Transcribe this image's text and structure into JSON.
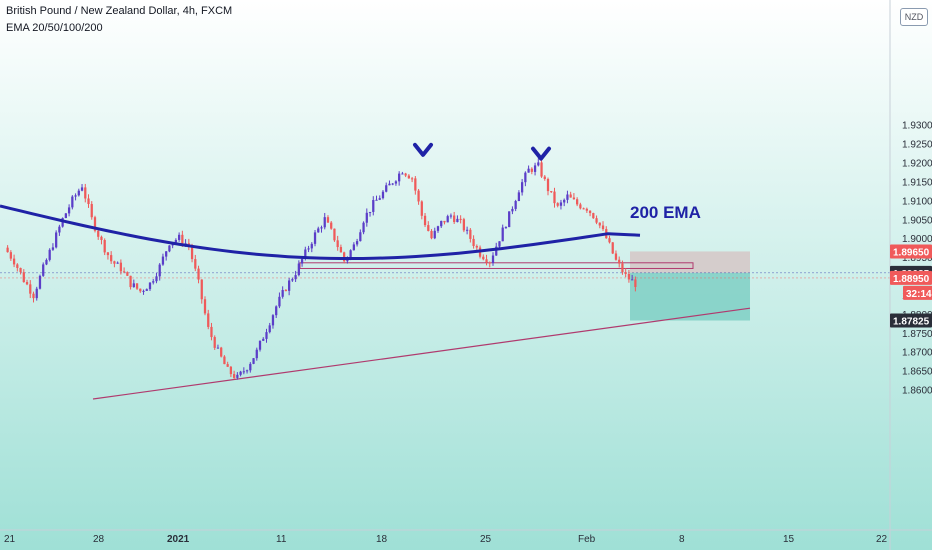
{
  "chart_title": "British Pound / New Zealand Dollar, 4h, FXCM",
  "indicator_label": "EMA 20/50/100/200",
  "currency_button": "NZD",
  "annotation_text": "200 EMA",
  "colors": {
    "bull": "#5b3ec8",
    "bear": "#ef5a5a",
    "ema": "#1f22a6",
    "trendline": "#b03a6e",
    "stop_zone": "#d6c4c4",
    "target_zone": "#7fcfc4",
    "price_badge": "#f05a5a",
    "label_badge": "#2a2e39",
    "background_top": "#ffffff",
    "background_bottom": "#9fe0d6"
  },
  "y_axis": {
    "ticks": [
      "1.93000",
      "1.92500",
      "1.92000",
      "1.91500",
      "1.91000",
      "1.90500",
      "1.90000",
      "1.89500",
      "1.88500",
      "1.88000",
      "1.87500",
      "1.87000",
      "1.86500",
      "1.86000"
    ]
  },
  "x_axis": {
    "ticks": [
      "21",
      "28",
      "2021",
      "11",
      "18",
      "25",
      "Feb",
      "8",
      "15",
      "22"
    ]
  },
  "price_labels": [
    {
      "value": "1.89650",
      "style": "red"
    },
    {
      "value": "1.89085",
      "style": "dark"
    },
    {
      "value": "1.88950",
      "style": "red"
    },
    {
      "value": "32:14",
      "style": "red"
    },
    {
      "value": "1.87825",
      "style": "dark"
    }
  ],
  "chart_data": {
    "type": "candlestick",
    "symbol": "GBPNZD",
    "timeframe": "4h",
    "ylim": [
      1.858,
      1.934
    ],
    "x_tick_dates": [
      "Dec 21",
      "Dec 28",
      "Jan 4 2021",
      "Jan 11",
      "Jan 18",
      "Jan 25",
      "Feb 1",
      "Feb 8",
      "Feb 15",
      "Feb 22"
    ],
    "swing_path_close": [
      1.8975,
      1.894,
      1.889,
      1.885,
      1.892,
      1.8985,
      1.905,
      1.91,
      1.914,
      1.905,
      1.899,
      1.894,
      1.892,
      1.888,
      1.886,
      1.888,
      1.8925,
      1.899,
      1.9,
      1.898,
      1.888,
      1.876,
      1.87,
      1.865,
      1.863,
      1.866,
      1.87,
      1.876,
      1.882,
      1.887,
      1.891,
      1.896,
      1.901,
      1.905,
      1.9,
      1.894,
      1.898,
      1.905,
      1.909,
      1.912,
      1.915,
      1.918,
      1.916,
      1.906,
      1.9,
      1.904,
      1.906,
      1.904,
      1.9,
      1.896,
      1.894,
      1.9,
      1.906,
      1.913,
      1.918,
      1.919,
      1.913,
      1.908,
      1.911,
      1.909,
      1.908,
      1.905,
      1.9,
      1.894,
      1.89,
      1.888
    ],
    "ema200": {
      "name": "EMA 200",
      "start": 1.9085,
      "min": 1.897,
      "end": 1.9008
    },
    "double_top_markers": [
      1.9215,
      1.9205
    ],
    "support_box": [
      1.892,
      1.8935
    ],
    "trade_setup": {
      "stop": 1.8965,
      "entry": 1.89085,
      "target": 1.87825,
      "last_price": 1.8895,
      "countdown": "32:14"
    },
    "trendline": [
      1.8575,
      1.8815
    ],
    "annotations": [
      "200 EMA"
    ]
  }
}
